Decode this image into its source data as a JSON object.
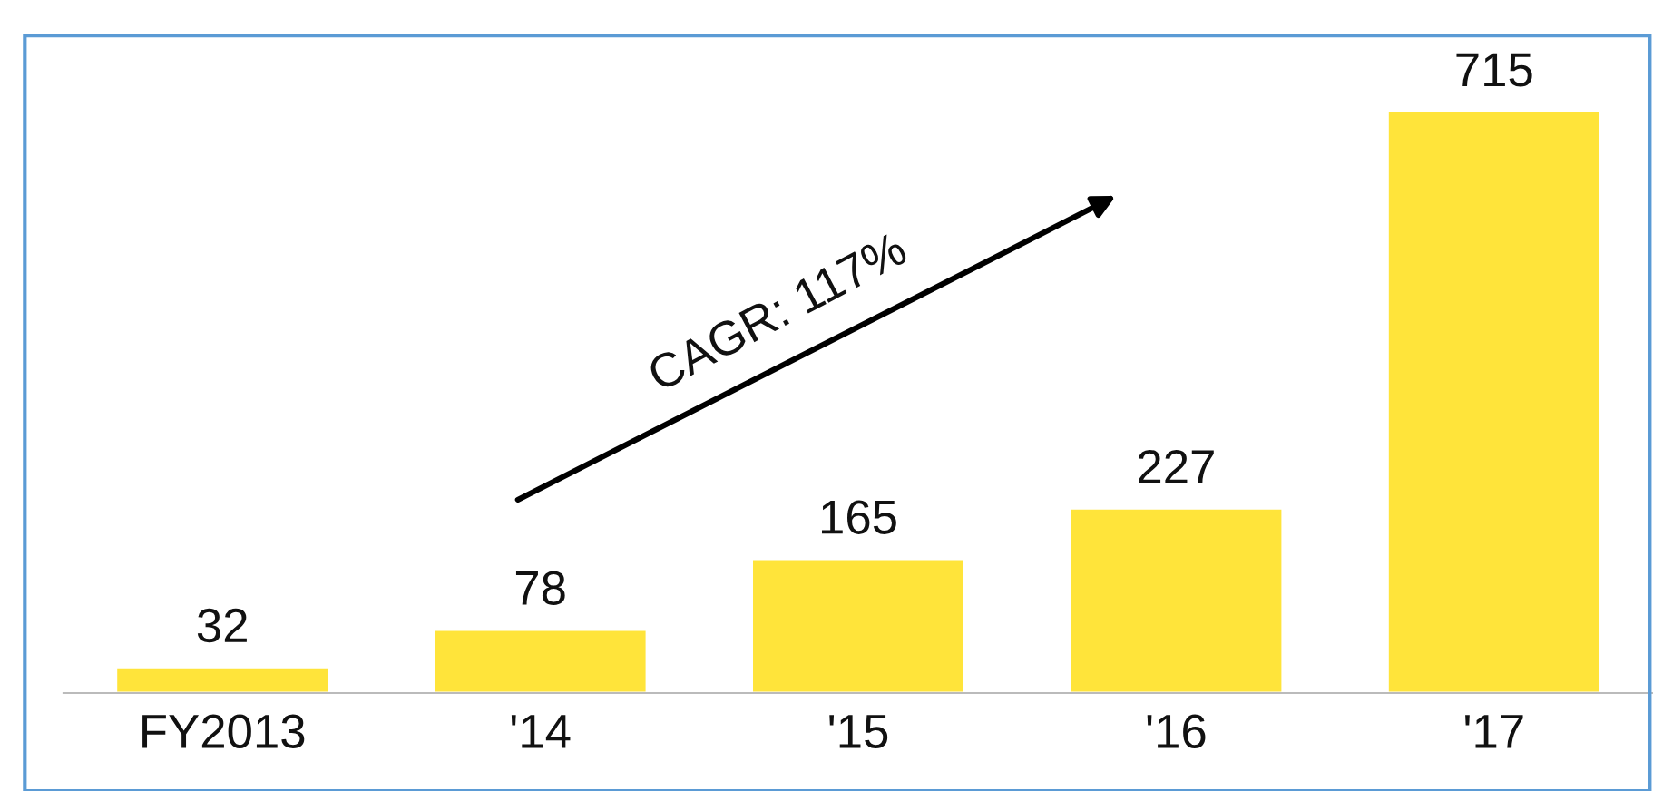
{
  "chart_data": {
    "type": "bar",
    "categories": [
      "FY2013",
      "'14",
      "'15",
      "'16",
      "'17"
    ],
    "values": [
      32,
      78,
      165,
      227,
      715
    ],
    "color": "#ffe43a",
    "data_labels": true,
    "grid": false,
    "annotations": [
      "CAGR: 117%"
    ]
  }
}
